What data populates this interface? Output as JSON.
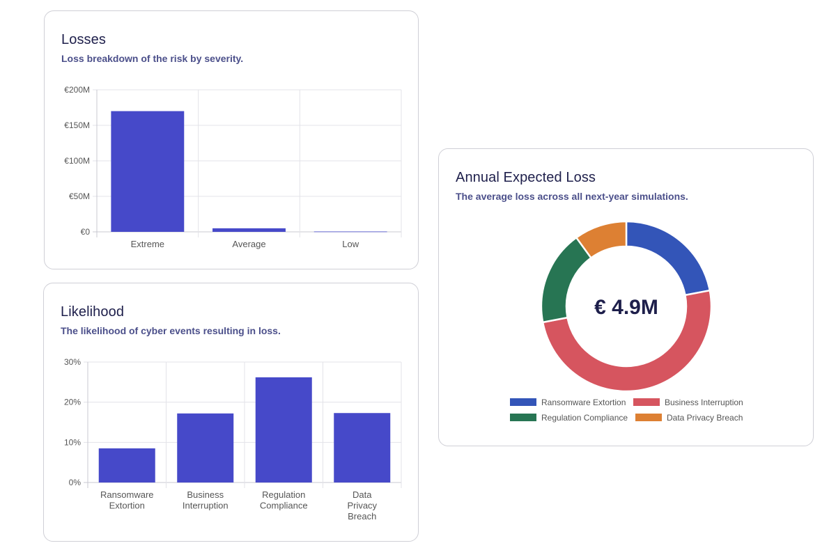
{
  "colors": {
    "bar": "#4649c9",
    "grid": "#e3e3e8",
    "axis": "#c8c8d0"
  },
  "losses": {
    "title": "Losses",
    "subtitle": "Loss breakdown of the risk by severity."
  },
  "likelihood": {
    "title": "Likelihood",
    "subtitle": "The likelihood of cyber events resulting in loss."
  },
  "ael": {
    "title": "Annual Expected Loss",
    "subtitle": "The average loss across all next-year simulations.",
    "center_value": "€ 4.9M"
  },
  "chart_data": [
    {
      "id": "losses",
      "type": "bar",
      "categories": [
        [
          "Extreme"
        ],
        [
          "Average"
        ],
        [
          "Low"
        ]
      ],
      "values": [
        170,
        5,
        0.5
      ],
      "unit": "M EUR",
      "ylim": [
        0,
        200
      ],
      "yticks": [
        0,
        50,
        100,
        150,
        200
      ],
      "ytick_labels": [
        "€0",
        "€50M",
        "€100M",
        "€150M",
        "€200M"
      ],
      "grid": true
    },
    {
      "id": "likelihood",
      "type": "bar",
      "categories": [
        [
          "Ransomware",
          "Extortion"
        ],
        [
          "Business",
          "Interruption"
        ],
        [
          "Regulation",
          "Compliance"
        ],
        [
          "Data",
          "Privacy",
          "Breach"
        ]
      ],
      "values": [
        8.5,
        17.2,
        26.2,
        17.3
      ],
      "unit": "%",
      "ylim": [
        0,
        30
      ],
      "yticks": [
        0,
        10,
        20,
        30
      ],
      "ytick_labels": [
        "0%",
        "10%",
        "20%",
        "30%"
      ],
      "grid": true
    },
    {
      "id": "ael",
      "type": "pie",
      "donut": true,
      "labels": [
        "Ransomware Extortion",
        "Business Interruption",
        "Regulation Compliance",
        "Data Privacy Breach"
      ],
      "values": [
        22,
        50,
        18,
        10
      ],
      "colors": [
        "#3355b8",
        "#d6555f",
        "#277553",
        "#dd8033"
      ],
      "legend": "bottom"
    }
  ]
}
